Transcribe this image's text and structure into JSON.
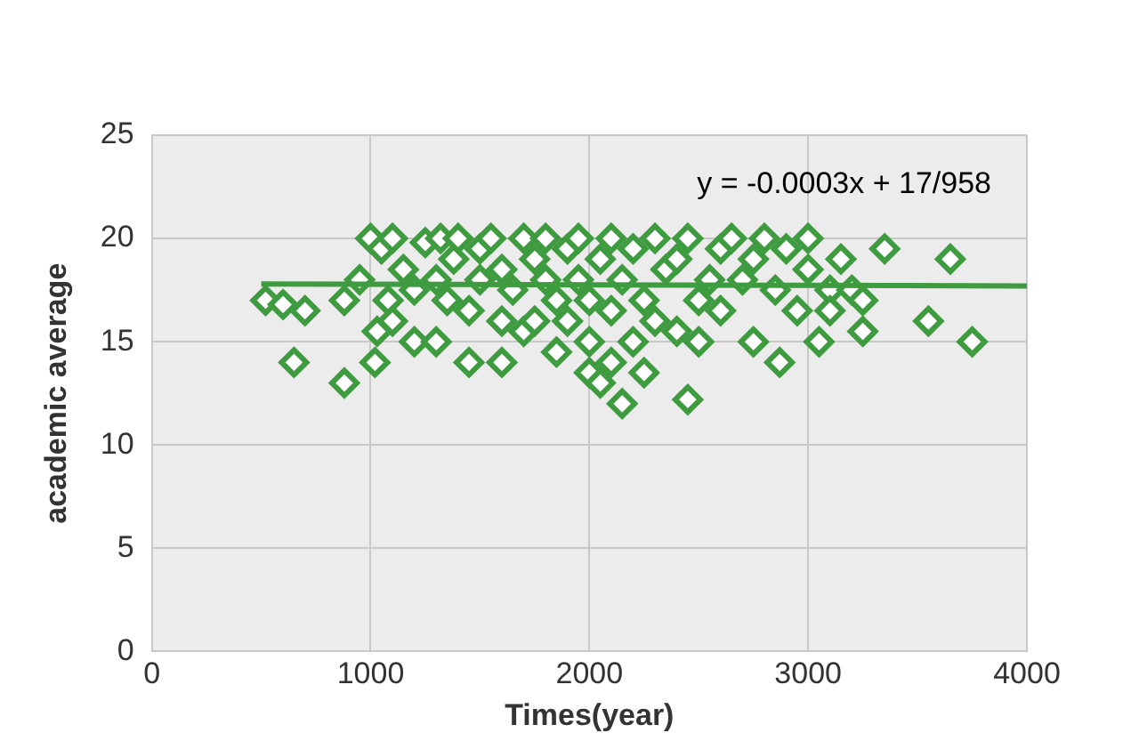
{
  "chart_data": {
    "type": "scatter",
    "xlabel": "Times(year)",
    "ylabel": "academic average",
    "xlim": [
      0,
      4000
    ],
    "xticks": [
      0,
      1000,
      2000,
      3000,
      4000
    ],
    "ylim": [
      0,
      25
    ],
    "yticks": [
      0,
      5,
      10,
      15,
      20,
      25
    ],
    "grid": true,
    "legend": false,
    "marker": "diamond",
    "annotations": [
      "y = -0.0003x + 17/958"
    ],
    "series": [
      {
        "color": "#3f9b3f",
        "x": [
          520,
          600,
          650,
          700,
          880,
          880,
          950,
          1000,
          1020,
          1030,
          1050,
          1080,
          1100,
          1100,
          1150,
          1200,
          1200,
          1250,
          1300,
          1300,
          1320,
          1350,
          1380,
          1400,
          1450,
          1450,
          1500,
          1500,
          1550,
          1600,
          1600,
          1600,
          1650,
          1700,
          1700,
          1750,
          1750,
          1800,
          1800,
          1850,
          1850,
          1900,
          1900,
          1950,
          1950,
          2000,
          2000,
          2000,
          2050,
          2050,
          2100,
          2100,
          2100,
          2150,
          2150,
          2200,
          2200,
          2250,
          2250,
          2300,
          2300,
          2350,
          2400,
          2400,
          2450,
          2450,
          2500,
          2500,
          2550,
          2600,
          2600,
          2650,
          2700,
          2750,
          2750,
          2800,
          2850,
          2870,
          2900,
          2950,
          3000,
          3000,
          3050,
          3100,
          3100,
          3150,
          3200,
          3250,
          3250,
          3350,
          3550,
          3650,
          3750
        ],
        "values": [
          17,
          16.8,
          14,
          16.5,
          13,
          17,
          18,
          20,
          14,
          15.5,
          19.5,
          17,
          16,
          20,
          18.5,
          17.5,
          15,
          19.8,
          15,
          18,
          20,
          17,
          19,
          20,
          16.5,
          14,
          18,
          19.5,
          20,
          16,
          14,
          18.5,
          17.5,
          20,
          15.5,
          19,
          16,
          18,
          20,
          17,
          14.5,
          19.5,
          16,
          20,
          18,
          15,
          17,
          13.5,
          19,
          13,
          14,
          20,
          16.5,
          12,
          18,
          19.5,
          15,
          17,
          13.5,
          20,
          16,
          18.5,
          19,
          15.5,
          12.2,
          20,
          17,
          15,
          18,
          19.5,
          16.5,
          20,
          18,
          15,
          19,
          20,
          17.5,
          14,
          19.5,
          16.5,
          20,
          18.5,
          15,
          17.5,
          16.5,
          19,
          17.5,
          15.5,
          17,
          19.5,
          16,
          19,
          15
        ]
      },
      {
        "type": "line",
        "color": "#3f9b3f",
        "marker": "none",
        "x": [
          500,
          4000
        ],
        "values": [
          17.8,
          17.7
        ]
      }
    ]
  }
}
